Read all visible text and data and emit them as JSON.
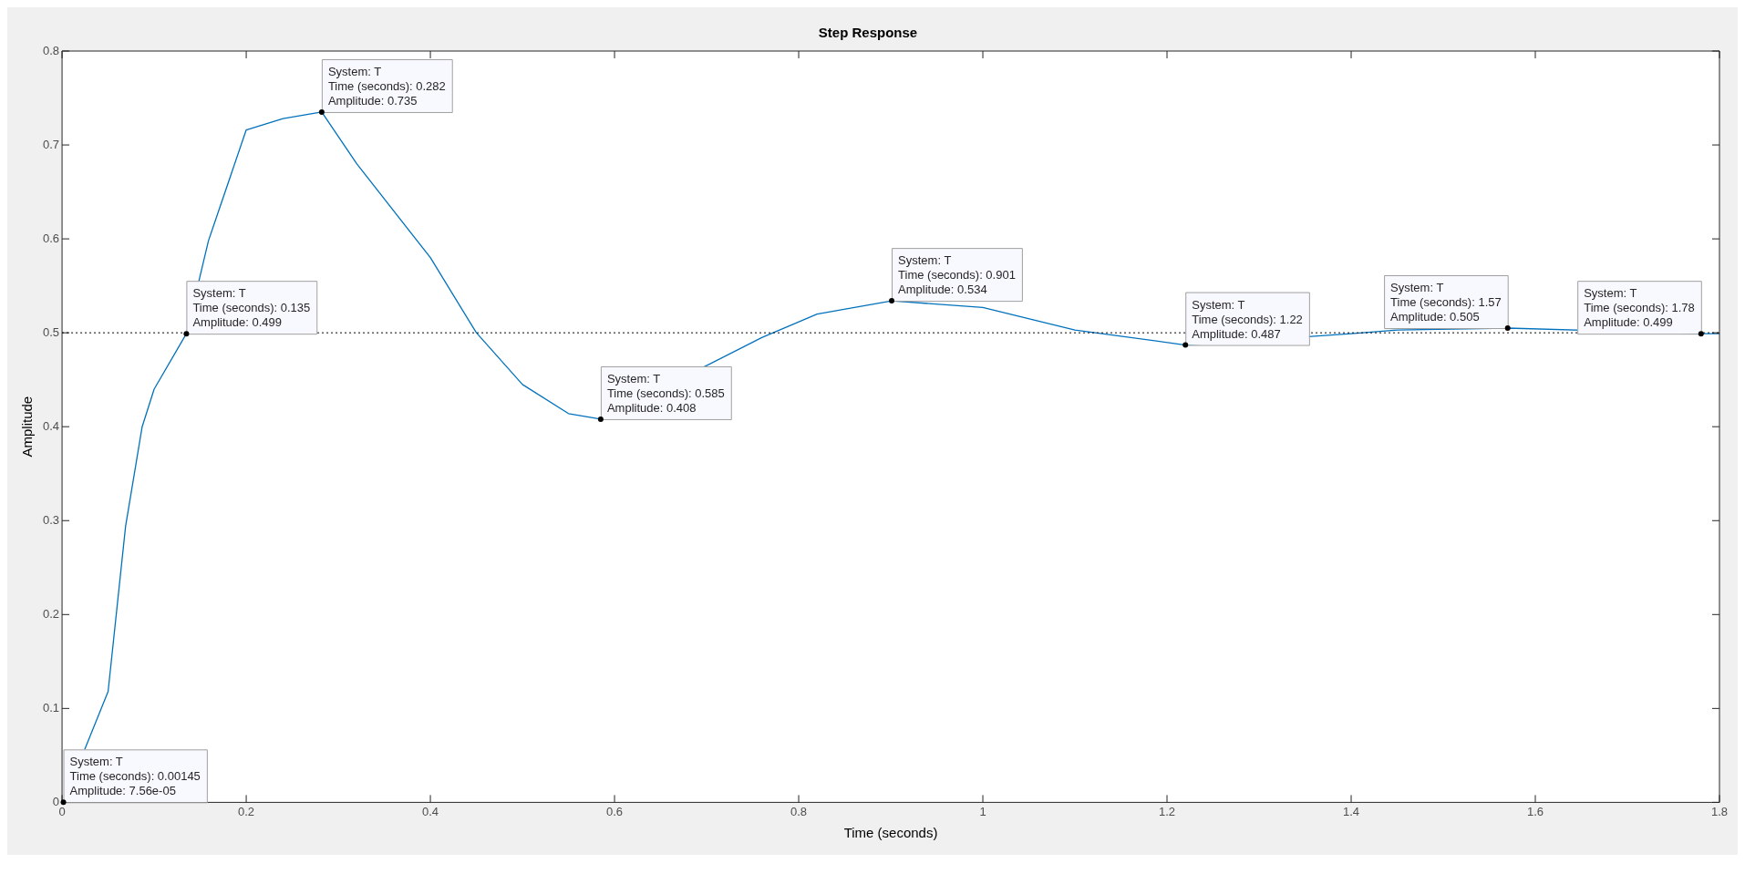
{
  "chart_data": {
    "type": "line",
    "title": "Step Response",
    "xlabel": "Time (seconds)",
    "ylabel": "Amplitude",
    "xlim": [
      0,
      1.8
    ],
    "xticks": [
      0,
      0.2,
      0.4,
      0.6,
      0.8,
      1,
      1.2,
      1.4,
      1.6,
      1.8
    ],
    "ylim": [
      0,
      0.8
    ],
    "yticks": [
      0,
      0.1,
      0.2,
      0.3,
      0.4,
      0.5,
      0.6,
      0.7,
      0.8
    ],
    "grid": false,
    "legend": false,
    "marker": "none",
    "line_style": "solid",
    "series": [
      {
        "color": "#0072bd",
        "x": [
          0,
          0.00145,
          0.05,
          0.069,
          0.087,
          0.1,
          0.135,
          0.159,
          0.2,
          0.24,
          0.282,
          0.32,
          0.4,
          0.45,
          0.5,
          0.55,
          0.585,
          0.76,
          0.82,
          0.901,
          1.0,
          1.1,
          1.22,
          1.4,
          1.45,
          1.57,
          1.78,
          1.8
        ],
        "values": [
          0,
          7.56e-05,
          0.118,
          0.294,
          0.4,
          0.44,
          0.499,
          0.598,
          0.716,
          0.728,
          0.735,
          0.68,
          0.58,
          0.5,
          0.445,
          0.414,
          0.408,
          0.495,
          0.52,
          0.534,
          0.527,
          0.503,
          0.487,
          0.499,
          0.503,
          0.505,
          0.499,
          0.499
        ]
      }
    ],
    "ref_lines": [
      {
        "axis": "y",
        "value": 0.5,
        "color": "#000000",
        "line_style": "dotted"
      }
    ],
    "annotations": [
      {
        "text": "System: T\nTime (seconds): 0.00145\nAmplitude: 7.56e-05",
        "x": 0.00145,
        "y": 7.56e-05
      },
      {
        "text": "System: T\nTime (seconds): 0.135\nAmplitude: 0.499",
        "x": 0.135,
        "y": 0.499
      },
      {
        "text": "System: T\nTime (seconds): 0.282\nAmplitude: 0.735",
        "x": 0.282,
        "y": 0.735
      },
      {
        "text": "System: T\nTime (seconds): 0.585\nAmplitude: 0.408",
        "x": 0.585,
        "y": 0.408
      },
      {
        "text": "System: T\nTime (seconds): 0.901\nAmplitude: 0.534",
        "x": 0.901,
        "y": 0.534
      },
      {
        "text": "System: T\nTime (seconds): 1.22\nAmplitude: 0.487",
        "x": 1.22,
        "y": 0.487
      },
      {
        "text": "System: T\nTime (seconds): 1.57\nAmplitude: 0.505",
        "x": 1.57,
        "y": 0.505
      },
      {
        "text": "System: T\nTime (seconds): 1.78\nAmplitude: 0.499",
        "x": 1.78,
        "y": 0.499
      }
    ]
  }
}
